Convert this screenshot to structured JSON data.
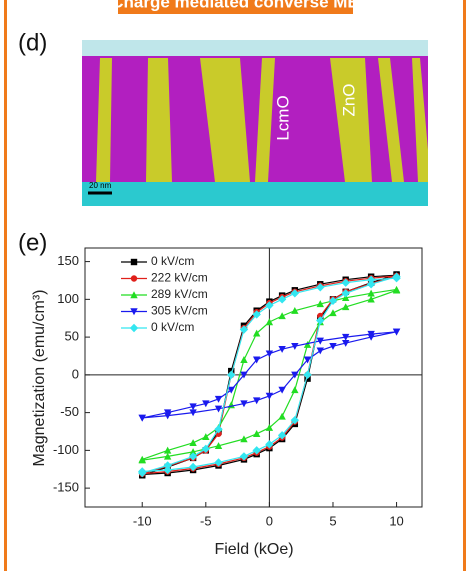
{
  "header": {
    "title": "Charge mediated converse ME"
  },
  "panels": {
    "d": "(d)",
    "e": "(e)"
  },
  "image_labels": {
    "left": "LcmO",
    "right": "ZnO",
    "scale": "20 nm"
  },
  "chart_data": {
    "type": "line",
    "x_label": "Field (kOe)",
    "y_label": "Magnetization (emu/cm³)",
    "xlim": [
      -14.5,
      12
    ],
    "ylim": [
      -175,
      168
    ],
    "xticks": [
      -10,
      -5,
      0,
      5,
      10
    ],
    "yticks": [
      -150,
      -100,
      -50,
      0,
      50,
      100,
      150
    ],
    "crosshair": true,
    "legend": "upper-left",
    "series": [
      {
        "name": "0 kV/cm",
        "color": "#000000",
        "marker": "square",
        "x": [
          10,
          8,
          6,
          4,
          2,
          1,
          0,
          -1,
          -2,
          -3,
          -4,
          -5,
          -6,
          -8,
          -10,
          -10,
          -8,
          -6,
          -4,
          -2,
          -1,
          0,
          1,
          2,
          3,
          4,
          5,
          6,
          8,
          10
        ],
        "values": [
          132,
          130,
          126,
          120,
          112,
          105,
          97,
          85,
          65,
          5,
          -75,
          -100,
          -110,
          -122,
          -133,
          -132,
          -130,
          -126,
          -120,
          -112,
          -105,
          -97,
          -85,
          -65,
          -5,
          75,
          100,
          110,
          122,
          133
        ]
      },
      {
        "name": "222 kV/cm",
        "color": "#e0201b",
        "marker": "circle",
        "x": [
          10,
          8,
          6,
          4,
          2,
          1,
          0,
          -1,
          -2,
          -3,
          -4,
          -5,
          -6,
          -8,
          -10,
          -10,
          -8,
          -6,
          -4,
          -2,
          -1,
          0,
          1,
          2,
          3,
          4,
          5,
          6,
          8,
          10
        ],
        "values": [
          131,
          128,
          124,
          118,
          110,
          103,
          95,
          83,
          62,
          0,
          -78,
          -100,
          -110,
          -121,
          -131,
          -131,
          -128,
          -124,
          -118,
          -110,
          -103,
          -95,
          -83,
          -62,
          0,
          78,
          100,
          110,
          121,
          131
        ]
      },
      {
        "name": "289 kV/cm",
        "color": "#22dd22",
        "marker": "triangle",
        "x": [
          10,
          8,
          6,
          4,
          2,
          1,
          0,
          -1,
          -2,
          -3,
          -4,
          -5,
          -6,
          -8,
          -10,
          -10,
          -8,
          -6,
          -4,
          -2,
          -1,
          0,
          1,
          2,
          3,
          4,
          5,
          6,
          8,
          10
        ],
        "values": [
          113,
          108,
          102,
          94,
          85,
          78,
          70,
          55,
          20,
          -40,
          -70,
          -82,
          -90,
          -100,
          -112,
          -113,
          -108,
          -102,
          -94,
          -85,
          -78,
          -70,
          -55,
          -20,
          40,
          70,
          82,
          90,
          100,
          112
        ]
      },
      {
        "name": "305 kV/cm",
        "color": "#1a1aee",
        "marker": "triangle-down",
        "x": [
          10,
          8,
          6,
          4,
          2,
          1,
          0,
          -1,
          -2,
          -3,
          -4,
          -5,
          -6,
          -8,
          -10,
          -10,
          -8,
          -6,
          -4,
          -2,
          -1,
          0,
          1,
          2,
          3,
          4,
          5,
          6,
          8,
          10
        ],
        "values": [
          57,
          54,
          50,
          45,
          38,
          34,
          28,
          20,
          0,
          -20,
          -32,
          -38,
          -42,
          -50,
          -57,
          -57,
          -54,
          -50,
          -45,
          -38,
          -34,
          -28,
          -20,
          0,
          20,
          32,
          38,
          42,
          50,
          57
        ]
      },
      {
        "name": "0 kV/cm",
        "color": "#33e6f0",
        "marker": "diamond",
        "x": [
          10,
          8,
          6,
          4,
          2,
          1,
          0,
          -1,
          -2,
          -3,
          -4,
          -5,
          -6,
          -8,
          -10,
          -10,
          -8,
          -6,
          -4,
          -2,
          -1,
          0,
          1,
          2,
          3,
          4,
          5,
          6,
          8,
          10
        ],
        "values": [
          128,
          126,
          122,
          116,
          108,
          100,
          92,
          80,
          60,
          0,
          -72,
          -98,
          -108,
          -120,
          -130,
          -128,
          -126,
          -122,
          -116,
          -108,
          -100,
          -92,
          -80,
          -60,
          0,
          72,
          98,
          108,
          120,
          130
        ]
      }
    ]
  }
}
